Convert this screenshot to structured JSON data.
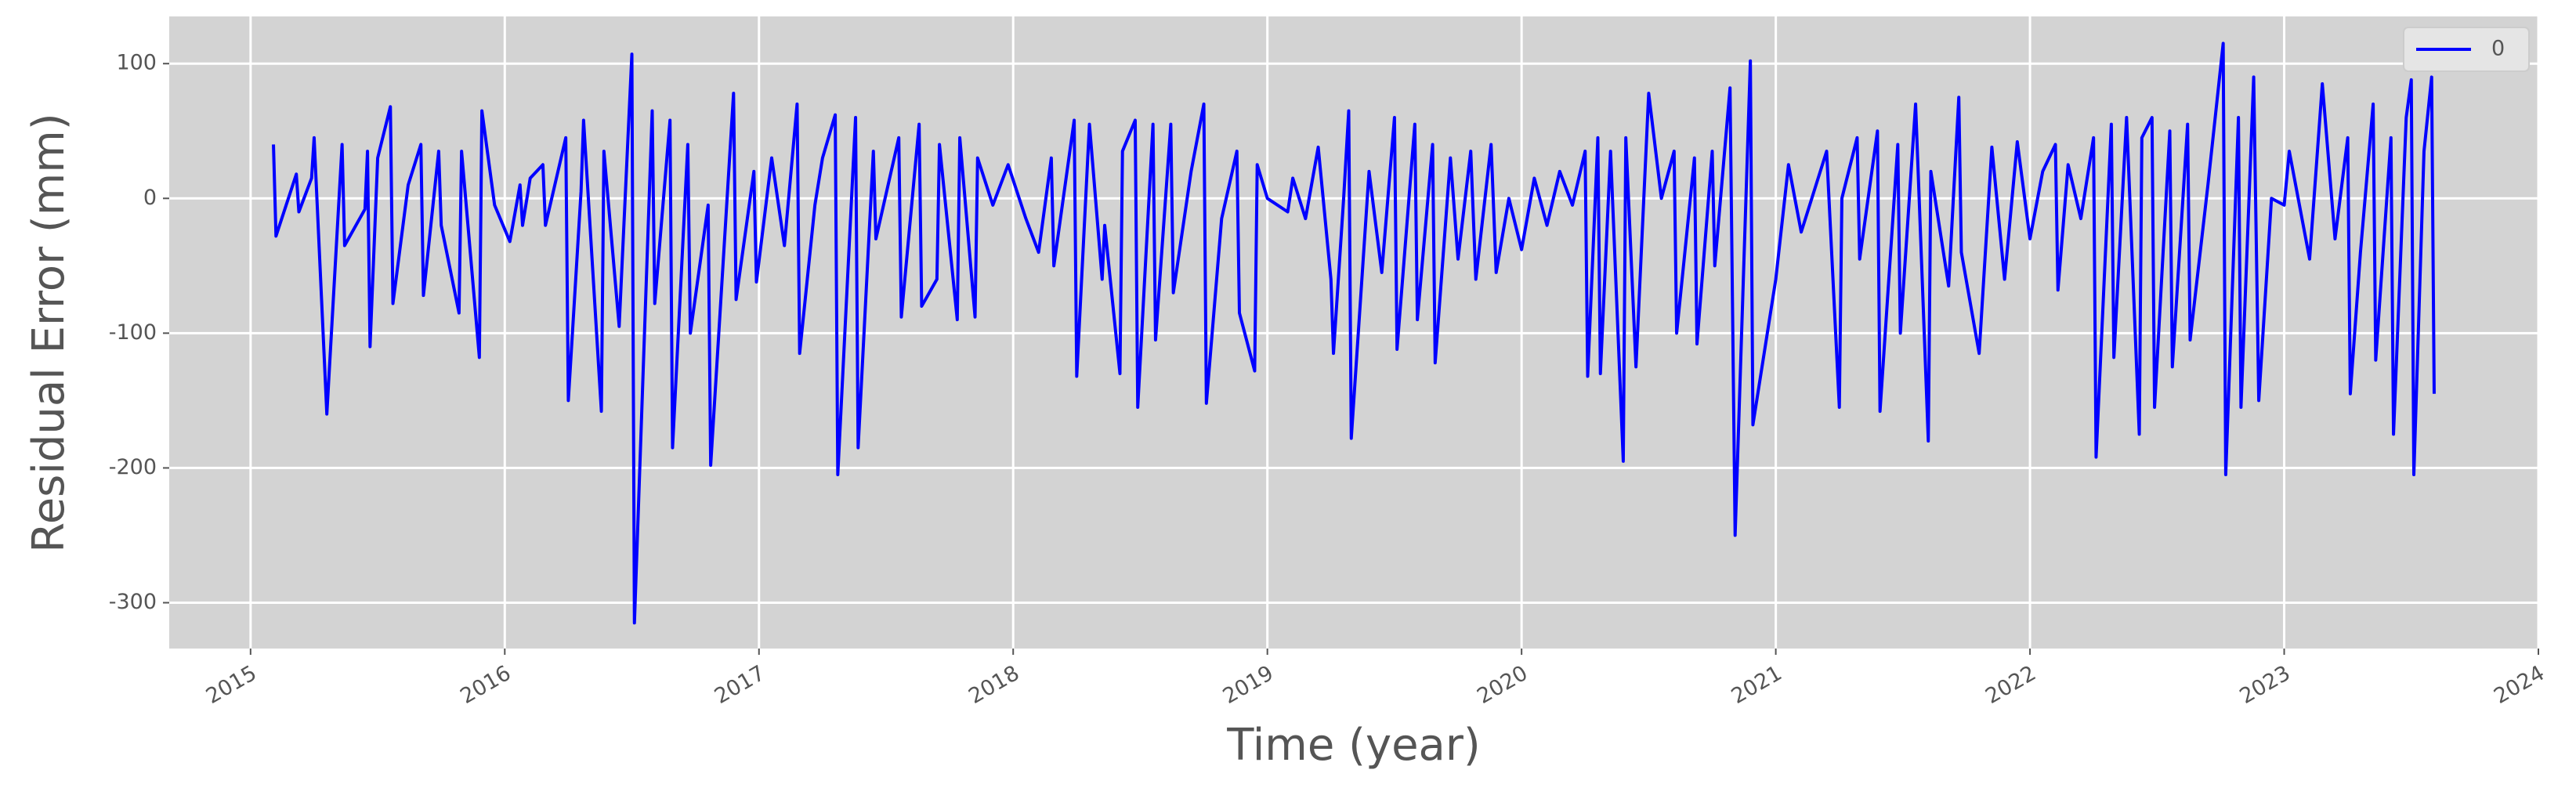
{
  "chart_data": {
    "type": "line",
    "xlabel": "Time (year)",
    "ylabel": "Residual Error (mm)",
    "xlim": [
      2014.68,
      2024.0
    ],
    "xticks": [
      2015,
      2016,
      2017,
      2018,
      2019,
      2020,
      2021,
      2022,
      2023,
      2024
    ],
    "ylim": [
      -334,
      135
    ],
    "yticks": [
      100,
      0,
      -100,
      -200,
      -300
    ],
    "grid": true,
    "legend": "upper right",
    "x": [
      2015.09,
      2015.1,
      2015.18,
      2015.19,
      2015.24,
      2015.25,
      2015.3,
      2015.36,
      2015.37,
      2015.45,
      2015.46,
      2015.47,
      2015.5,
      2015.55,
      2015.56,
      2015.62,
      2015.67,
      2015.68,
      2015.74,
      2015.75,
      2015.82,
      2015.83,
      2015.9,
      2015.91,
      2015.96,
      2016.02,
      2016.06,
      2016.07,
      2016.1,
      2016.15,
      2016.16,
      2016.24,
      2016.25,
      2016.3,
      2016.31,
      2016.38,
      2016.39,
      2016.45,
      2016.5,
      2016.51,
      2016.58,
      2016.59,
      2016.65,
      2016.66,
      2016.72,
      2016.73,
      2016.8,
      2016.81,
      2016.9,
      2016.91,
      2016.98,
      2016.99,
      2017.05,
      2017.1,
      2017.15,
      2017.16,
      2017.22,
      2017.25,
      2017.3,
      2017.31,
      2017.38,
      2017.39,
      2017.45,
      2017.46,
      2017.55,
      2017.56,
      2017.63,
      2017.64,
      2017.7,
      2017.71,
      2017.78,
      2017.79,
      2017.85,
      2017.86,
      2017.92,
      2017.98,
      2018.05,
      2018.1,
      2018.15,
      2018.16,
      2018.24,
      2018.25,
      2018.3,
      2018.35,
      2018.36,
      2018.42,
      2018.43,
      2018.48,
      2018.49,
      2018.55,
      2018.56,
      2018.62,
      2018.63,
      2018.7,
      2018.75,
      2018.76,
      2018.82,
      2018.88,
      2018.89,
      2018.95,
      2018.96,
      2019.0,
      2019.08,
      2019.1,
      2019.15,
      2019.2,
      2019.25,
      2019.26,
      2019.3,
      2019.32,
      2019.33,
      2019.4,
      2019.45,
      2019.5,
      2019.51,
      2019.58,
      2019.59,
      2019.65,
      2019.66,
      2019.72,
      2019.75,
      2019.8,
      2019.82,
      2019.88,
      2019.9,
      2019.95,
      2020.0,
      2020.05,
      2020.1,
      2020.15,
      2020.2,
      2020.25,
      2020.26,
      2020.3,
      2020.31,
      2020.35,
      2020.4,
      2020.41,
      2020.45,
      2020.5,
      2020.55,
      2020.6,
      2020.61,
      2020.68,
      2020.69,
      2020.75,
      2020.76,
      2020.82,
      2020.84,
      2020.9,
      2020.91,
      2021.0,
      2021.05,
      2021.1,
      2021.15,
      2021.2,
      2021.25,
      2021.26,
      2021.32,
      2021.33,
      2021.4,
      2021.41,
      2021.48,
      2021.49,
      2021.55,
      2021.6,
      2021.61,
      2021.68,
      2021.72,
      2021.73,
      2021.8,
      2021.85,
      2021.9,
      2021.95,
      2022.0,
      2022.05,
      2022.1,
      2022.11,
      2022.15,
      2022.2,
      2022.25,
      2022.26,
      2022.32,
      2022.33,
      2022.38,
      2022.43,
      2022.44,
      2022.48,
      2022.49,
      2022.55,
      2022.56,
      2022.62,
      2022.63,
      2022.7,
      2022.76,
      2022.77,
      2022.82,
      2022.83,
      2022.88,
      2022.9,
      2022.95,
      2023.0,
      2023.02,
      2023.1,
      2023.15,
      2023.2,
      2023.25,
      2023.26,
      2023.3,
      2023.35,
      2023.36,
      2023.42,
      2023.43,
      2023.48,
      2023.5,
      2023.51,
      2023.55,
      2023.58,
      2023.59
    ],
    "series": [
      {
        "name": "0",
        "color": "#0000ff",
        "values": [
          40,
          -28,
          18,
          -10,
          15,
          45,
          -160,
          40,
          -35,
          -8,
          35,
          -110,
          30,
          68,
          -78,
          10,
          40,
          -72,
          35,
          -20,
          -85,
          35,
          -118,
          65,
          -5,
          -32,
          10,
          -20,
          15,
          25,
          -20,
          45,
          -150,
          5,
          58,
          -158,
          35,
          -95,
          107,
          -315,
          65,
          -78,
          58,
          -185,
          40,
          -100,
          -5,
          -198,
          78,
          -75,
          20,
          -62,
          30,
          -35,
          70,
          -115,
          -5,
          30,
          62,
          -205,
          60,
          -185,
          35,
          -30,
          45,
          -88,
          55,
          -80,
          -60,
          40,
          -90,
          45,
          -88,
          30,
          -5,
          25,
          -15,
          -40,
          30,
          -50,
          58,
          -132,
          55,
          -60,
          -20,
          -130,
          35,
          58,
          -155,
          55,
          -105,
          55,
          -70,
          20,
          70,
          -152,
          -15,
          35,
          -85,
          -128,
          25,
          0,
          -10,
          15,
          -15,
          38,
          -60,
          -115,
          0,
          65,
          -178,
          20,
          -55,
          60,
          -112,
          55,
          -90,
          40,
          -122,
          30,
          -45,
          35,
          -60,
          40,
          -55,
          0,
          -38,
          15,
          -20,
          20,
          -5,
          35,
          -132,
          45,
          -130,
          35,
          -195,
          45,
          -125,
          78,
          0,
          35,
          -100,
          30,
          -108,
          35,
          -50,
          82,
          -250,
          102,
          -168,
          -60,
          25,
          -25,
          5,
          35,
          -155,
          0,
          45,
          -45,
          50,
          -158,
          40,
          -100,
          70,
          -180,
          20,
          -65,
          75,
          -40,
          -115,
          38,
          -60,
          42,
          -30,
          20,
          40,
          -68,
          25,
          -15,
          45,
          -192,
          55,
          -118,
          60,
          -175,
          45,
          60,
          -155,
          50,
          -125,
          55,
          -105,
          10,
          115,
          -205,
          60,
          -155,
          90,
          -150,
          0,
          -5,
          35,
          -45,
          85,
          -30,
          45,
          -145,
          -40,
          70,
          -120,
          45,
          -175,
          60,
          88,
          -205,
          35,
          90,
          -145
        ]
      }
    ]
  }
}
